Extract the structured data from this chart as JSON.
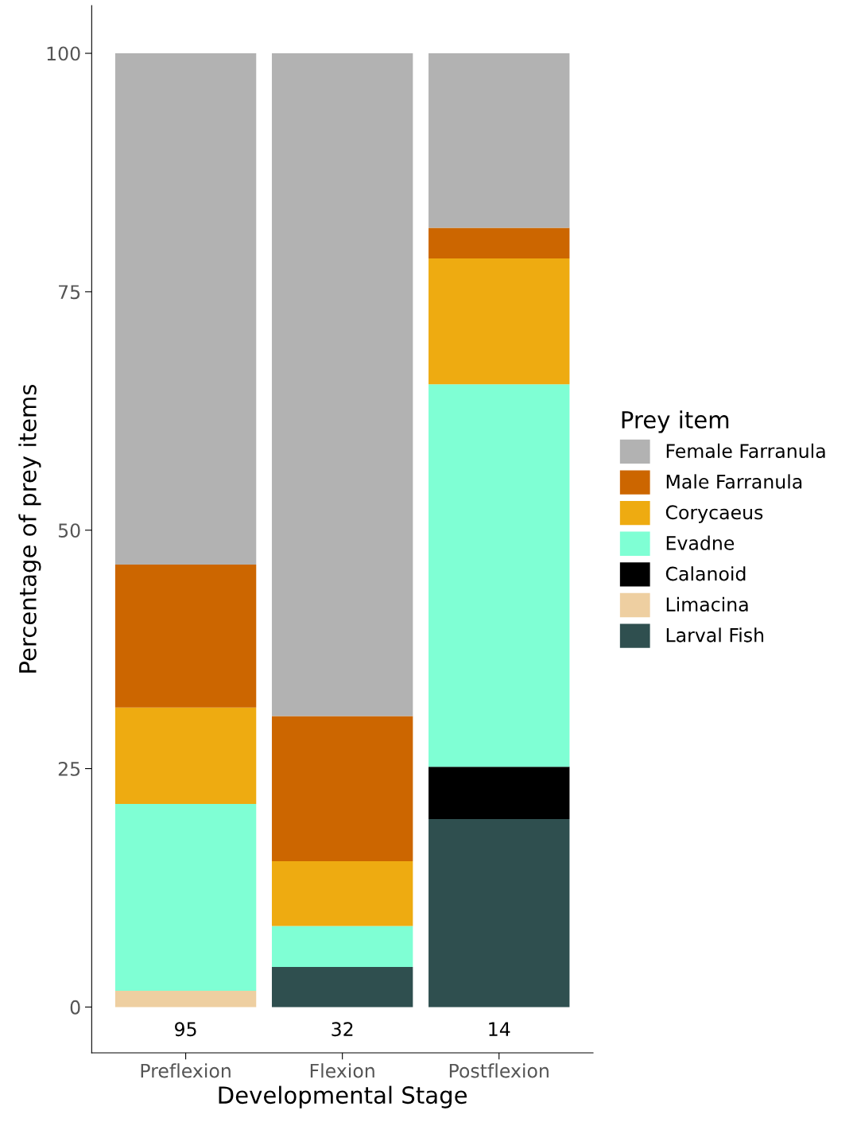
{
  "chart_data": {
    "type": "bar",
    "stacked": true,
    "xlabel": "Developmental Stage",
    "ylabel": "Percentage of prey items",
    "legend_title": "Prey item",
    "legend": "right",
    "categories": [
      "Preflexion",
      "Flexion",
      "Postflexion"
    ],
    "series": [
      {
        "name": "Larval Fish",
        "color": "#2f4f4f",
        "values": [
          0,
          4.2,
          19.7
        ]
      },
      {
        "name": "Limacina",
        "color": "#eecfa1",
        "values": [
          1.7,
          0,
          0
        ]
      },
      {
        "name": "Calanoid",
        "color": "#000000",
        "values": [
          0,
          0,
          5.5
        ]
      },
      {
        "name": "Evadne",
        "color": "#7fffd4",
        "values": [
          19.6,
          4.3,
          40.1
        ]
      },
      {
        "name": "Corycaeus",
        "color": "#eeab11",
        "values": [
          10.1,
          6.8,
          13.2
        ]
      },
      {
        "name": "Male Farranula",
        "color": "#cc6600",
        "values": [
          15.0,
          15.2,
          3.2
        ]
      },
      {
        "name": "Female Farranula",
        "color": "#b2b2b2",
        "values": [
          53.6,
          69.5,
          18.3
        ]
      }
    ],
    "ylim": [
      -4.8,
      105
    ],
    "yticks": [
      0,
      25,
      50,
      75,
      100
    ],
    "grid": false,
    "annotations": [
      "95",
      "32",
      "14"
    ]
  }
}
